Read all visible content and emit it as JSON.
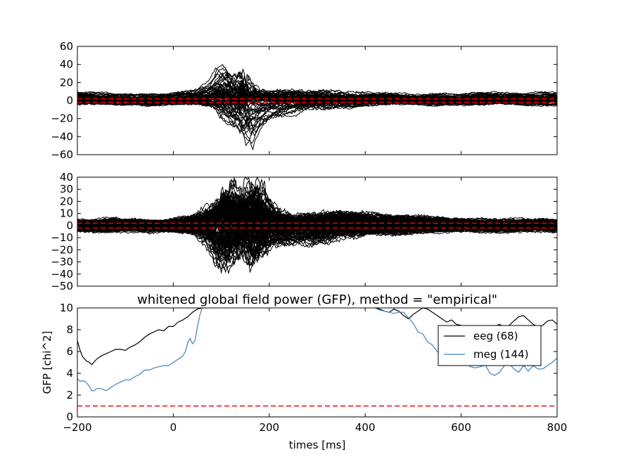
{
  "colors": {
    "trace": "#000000",
    "reference": "#ff0000",
    "eeg": "#000000",
    "meg": "#4682b4"
  },
  "chart_data": [
    {
      "type": "line",
      "id": "eeg-butterfly",
      "title": "",
      "xlabel": "",
      "ylabel": "",
      "xlim": [
        -200,
        800
      ],
      "ylim": [
        -60,
        60
      ],
      "y_ticks": [
        -60,
        -40,
        -20,
        0,
        20,
        40,
        60
      ],
      "y_tick_labels": [
        "−60",
        "−40",
        "−20",
        "0",
        "20",
        "40",
        "60"
      ],
      "x_tick_labels_visible": false,
      "reference_lines": [
        -2,
        2
      ],
      "description_of_traces": "68 overlaid whitened EEG channel traces",
      "envelope": {
        "x": [
          -200,
          -100,
          0,
          50,
          80,
          100,
          110,
          130,
          150,
          160,
          175,
          200,
          250,
          300,
          400,
          500,
          600,
          700,
          800
        ],
        "upper": [
          9,
          8,
          8,
          10,
          22,
          43,
          41,
          25,
          35,
          18,
          12,
          10,
          10,
          12,
          8,
          7,
          7,
          9,
          9
        ],
        "lower": [
          -5,
          -5,
          -5,
          -6,
          -10,
          -15,
          -20,
          -30,
          -45,
          -60,
          -40,
          -25,
          -20,
          -10,
          -6,
          -5,
          -5,
          -5,
          -5
        ]
      }
    },
    {
      "type": "line",
      "id": "meg-butterfly",
      "title": "",
      "xlabel": "",
      "ylabel": "",
      "xlim": [
        -200,
        800
      ],
      "ylim": [
        -50,
        40
      ],
      "y_ticks": [
        -50,
        -40,
        -30,
        -20,
        -10,
        0,
        10,
        20,
        30,
        40
      ],
      "y_tick_labels": [
        "−50",
        "−40",
        "−30",
        "−20",
        "−10",
        "0",
        "10",
        "20",
        "30",
        "40"
      ],
      "x_tick_labels_visible": false,
      "reference_lines": [
        -2,
        2
      ],
      "description_of_traces": "144 overlaid whitened MEG channel traces",
      "envelope": {
        "x": [
          -200,
          -100,
          0,
          50,
          80,
          100,
          110,
          130,
          150,
          160,
          175,
          200,
          250,
          300,
          350,
          400,
          500,
          600,
          700,
          800
        ],
        "upper": [
          5,
          5,
          5,
          8,
          15,
          25,
          34,
          28,
          20,
          34,
          32,
          15,
          8,
          10,
          12,
          10,
          8,
          5,
          5,
          5
        ],
        "lower": [
          -5,
          -5,
          -5,
          -8,
          -20,
          -38,
          -35,
          -28,
          -25,
          -40,
          -30,
          -15,
          -15,
          -15,
          -10,
          -8,
          -6,
          -5,
          -5,
          -5
        ]
      }
    },
    {
      "type": "line",
      "id": "gfp",
      "title": "whitened global field power (GFP), method = \"empirical\"",
      "xlabel": "times [ms]",
      "ylabel": "GFP [chi^2]",
      "xlim": [
        -200,
        800
      ],
      "ylim": [
        0,
        10
      ],
      "x_ticks": [
        -200,
        0,
        200,
        400,
        600,
        800
      ],
      "x_tick_labels": [
        "−200",
        "0",
        "200",
        "400",
        "600",
        "800"
      ],
      "y_ticks": [
        0,
        2,
        4,
        6,
        8,
        10
      ],
      "y_tick_labels": [
        "0",
        "2",
        "4",
        "6",
        "8",
        "10"
      ],
      "reference_line": 1,
      "legend_position": "upper-right",
      "series": [
        {
          "name": "eeg (68)",
          "color": "#000000",
          "x": [
            -200,
            -195,
            -190,
            -185,
            -180,
            -175,
            -170,
            -160,
            -150,
            -140,
            -130,
            -120,
            -110,
            -100,
            -90,
            -80,
            -70,
            -60,
            -50,
            -40,
            -30,
            -20,
            -10,
            0,
            10,
            20,
            30,
            40,
            50,
            60,
            70,
            420,
            430,
            440,
            450,
            460,
            470,
            480,
            490,
            500,
            510,
            520,
            530,
            540,
            550,
            560,
            570,
            580,
            590,
            600,
            610,
            620,
            630,
            640,
            650,
            660,
            670,
            680,
            690,
            700,
            710,
            720,
            730,
            740,
            750,
            760,
            770,
            780,
            790,
            800
          ],
          "y": [
            7.0,
            6.2,
            5.6,
            5.3,
            5.1,
            5.0,
            4.8,
            5.3,
            5.6,
            5.8,
            6.0,
            6.2,
            6.2,
            6.1,
            6.4,
            6.6,
            6.9,
            7.3,
            7.6,
            7.8,
            8.0,
            7.9,
            8.3,
            8.3,
            8.7,
            8.9,
            9.2,
            9.6,
            9.9,
            10.0,
            10.0,
            10.0,
            9.9,
            9.7,
            9.6,
            9.9,
            9.7,
            9.3,
            9.0,
            9.4,
            9.7,
            10.0,
            9.9,
            9.6,
            9.3,
            9.0,
            8.7,
            8.9,
            8.5,
            8.4,
            8.0,
            7.3,
            7.0,
            7.2,
            7.6,
            8.0,
            8.3,
            8.5,
            8.2,
            8.4,
            8.8,
            9.2,
            9.3,
            8.9,
            8.5,
            8.3,
            8.4,
            8.8,
            8.9,
            8.5
          ]
        },
        {
          "name": "meg (144)",
          "color": "#4682b4",
          "x": [
            -200,
            -195,
            -190,
            -185,
            -180,
            -175,
            -170,
            -165,
            -160,
            -150,
            -140,
            -130,
            -120,
            -110,
            -100,
            -90,
            -80,
            -70,
            -60,
            -50,
            -40,
            -30,
            -20,
            -10,
            0,
            10,
            20,
            25,
            30,
            35,
            40,
            45,
            50,
            55,
            60,
            420,
            430,
            440,
            450,
            460,
            470,
            480,
            490,
            500,
            510,
            520,
            530,
            540,
            550,
            560,
            570,
            580,
            590,
            600,
            610,
            620,
            630,
            640,
            650,
            660,
            670,
            680,
            690,
            700,
            710,
            720,
            730,
            740,
            750,
            760,
            770,
            780,
            790,
            800
          ],
          "y": [
            3.5,
            3.3,
            3.3,
            3.3,
            3.1,
            2.8,
            2.4,
            2.4,
            2.6,
            2.6,
            2.4,
            2.7,
            3.0,
            3.2,
            3.4,
            3.4,
            3.7,
            3.9,
            4.3,
            4.3,
            4.5,
            4.6,
            4.7,
            4.7,
            5.0,
            5.3,
            5.6,
            6.0,
            6.8,
            7.2,
            6.7,
            7.0,
            8.2,
            9.3,
            10.0,
            10.0,
            9.8,
            9.7,
            9.6,
            9.5,
            9.6,
            9.6,
            9.1,
            8.6,
            7.8,
            7.6,
            6.9,
            6.6,
            6.0,
            5.6,
            5.2,
            5.0,
            5.3,
            5.1,
            4.9,
            4.6,
            4.5,
            4.6,
            4.8,
            4.0,
            3.8,
            4.1,
            4.7,
            4.9,
            4.4,
            4.1,
            4.7,
            4.2,
            4.7,
            4.4,
            4.4,
            4.7,
            5.0,
            5.4
          ]
        }
      ]
    }
  ]
}
